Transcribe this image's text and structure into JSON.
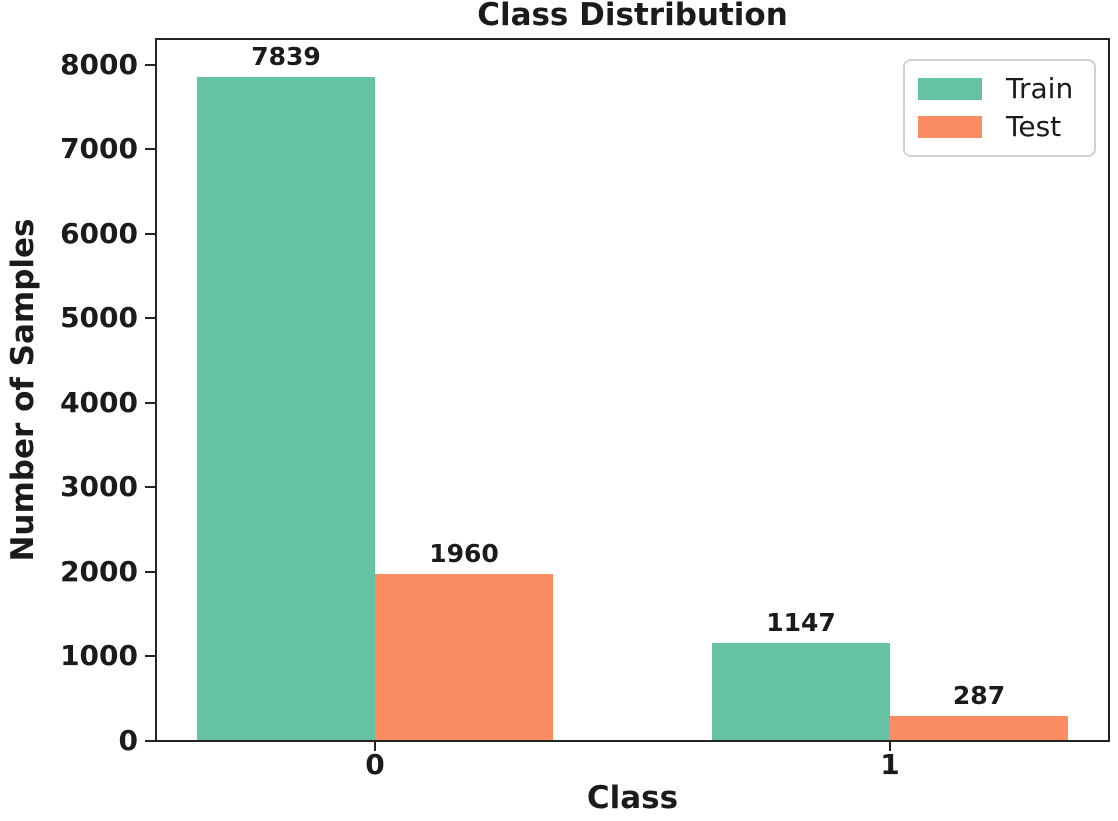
{
  "figure": {
    "title": "Class Distribution"
  },
  "axes": {
    "xlabel": "Class",
    "ylabel": "Number of Samples"
  },
  "legend": {
    "position": "upper right",
    "items": [
      {
        "label": "Train",
        "color": "#66c2a5"
      },
      {
        "label": "Test",
        "color": "#fc8d62"
      }
    ]
  },
  "chart_data": {
    "type": "bar",
    "title": "Class Distribution",
    "xlabel": "Class",
    "ylabel": "Number of Samples",
    "categories": [
      "0",
      "1"
    ],
    "series": [
      {
        "name": "Train",
        "color": "#66c2a5",
        "values": [
          7839,
          1147
        ]
      },
      {
        "name": "Test",
        "color": "#fc8d62",
        "values": [
          1960,
          287
        ]
      }
    ],
    "bar_value_labels": {
      "Train": [
        "7839",
        "1147"
      ],
      "Test": [
        "1960",
        "287"
      ]
    },
    "yticks": [
      "0",
      "1000",
      "2000",
      "3000",
      "4000",
      "5000",
      "6000",
      "7000",
      "8000"
    ],
    "xticks": [
      "0",
      "1"
    ],
    "ylim": [
      0,
      8280
    ],
    "grid": false,
    "legend_position": "upper right"
  },
  "style": {
    "train_color": "#66c2a5",
    "test_color": "#fc8d62",
    "text_color": "#1b1b1b",
    "spine_color": "#242424",
    "legend_border_color": "#d0d0d0",
    "background_color": "#ffffff"
  }
}
